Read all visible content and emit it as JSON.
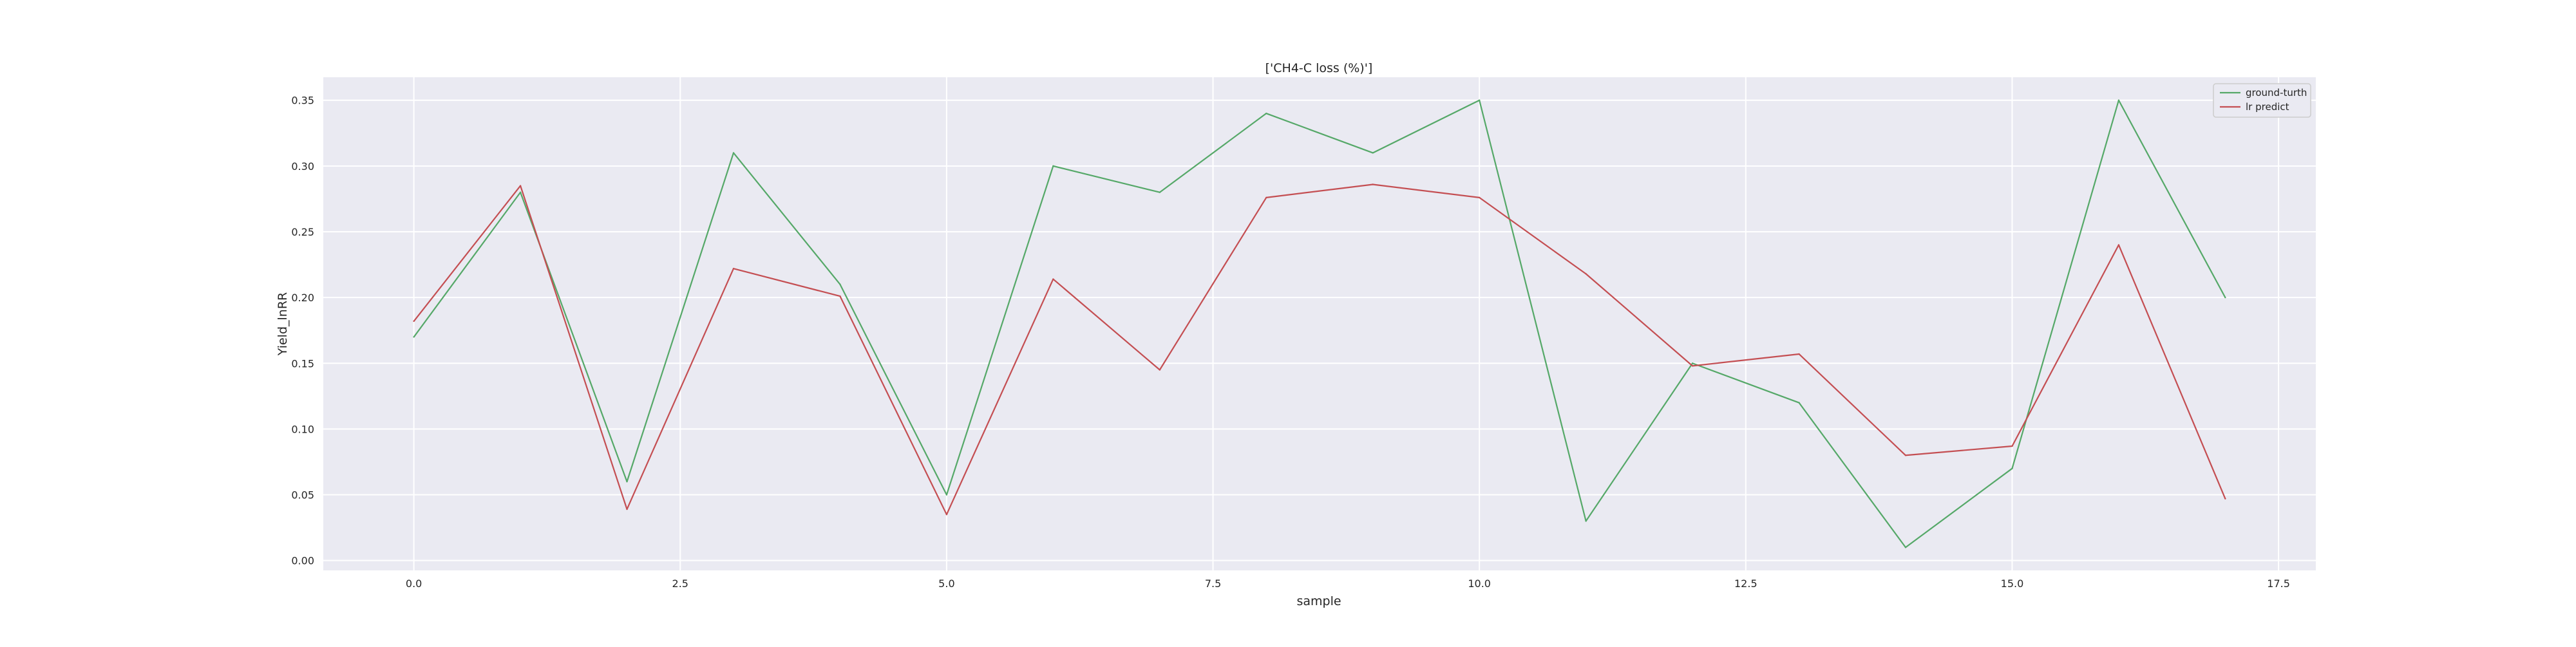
{
  "chart_data": {
    "type": "line",
    "title": "['CH4-C loss (%)']",
    "xlabel": "sample",
    "ylabel": "Yield_lnRR",
    "x": [
      0,
      1,
      2,
      3,
      4,
      5,
      6,
      7,
      8,
      9,
      10,
      11,
      12,
      13,
      14,
      15,
      16,
      17
    ],
    "xlim": [
      -0.85,
      17.85
    ],
    "ylim": [
      -0.0075,
      0.3675
    ],
    "x_ticks": [
      0.0,
      2.5,
      5.0,
      7.5,
      10.0,
      12.5,
      15.0,
      17.5
    ],
    "x_tick_labels": [
      "0.0",
      "2.5",
      "5.0",
      "7.5",
      "10.0",
      "12.5",
      "15.0",
      "17.5"
    ],
    "y_ticks": [
      0.0,
      0.05,
      0.1,
      0.15,
      0.2,
      0.25,
      0.3,
      0.35
    ],
    "y_tick_labels": [
      "0.00",
      "0.05",
      "0.10",
      "0.15",
      "0.20",
      "0.25",
      "0.30",
      "0.35"
    ],
    "grid": true,
    "legend_position": "top-right",
    "series": [
      {
        "name": "ground-turth",
        "color": "#55a868",
        "values": [
          0.17,
          0.28,
          0.06,
          0.31,
          0.21,
          0.05,
          0.3,
          0.28,
          0.34,
          0.31,
          0.35,
          0.03,
          0.15,
          0.12,
          0.01,
          0.07,
          0.35,
          0.2
        ]
      },
      {
        "name": "lr predict",
        "color": "#c44e52",
        "values": [
          0.182,
          0.285,
          0.039,
          0.222,
          0.201,
          0.035,
          0.214,
          0.145,
          0.276,
          0.286,
          0.276,
          0.218,
          0.148,
          0.157,
          0.08,
          0.087,
          0.24,
          0.047
        ]
      }
    ],
    "colors": {
      "plot_background": "#eaeaf2",
      "grid": "#ffffff",
      "text": "#262626"
    }
  }
}
